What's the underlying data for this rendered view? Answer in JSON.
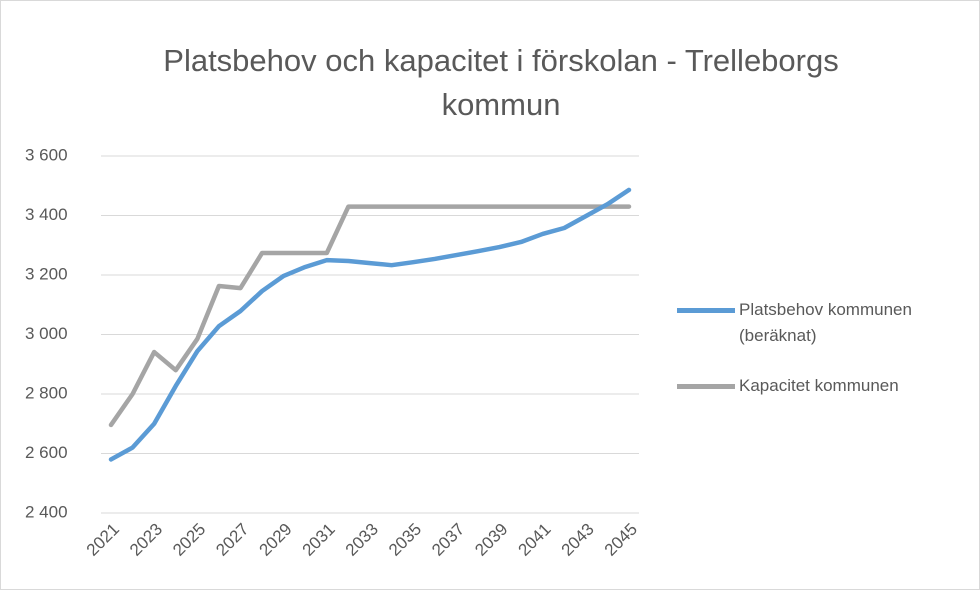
{
  "chart_data": {
    "type": "line",
    "title": "Platsbehov och kapacitet i förskolan - Trelleborgs kommun",
    "categories": [
      "2021",
      null,
      "2023",
      null,
      "2025",
      null,
      "2027",
      null,
      "2029",
      null,
      "2031",
      null,
      "2033",
      null,
      "2035",
      null,
      "2037",
      null,
      "2039",
      null,
      "2041",
      null,
      "2043",
      null,
      "2045"
    ],
    "series": [
      {
        "name": "Platsbehov kommunen (beräknat)",
        "color": "#5b9bd5",
        "values": [
          2580,
          2620,
          2700,
          2827,
          2944,
          3028,
          3079,
          3146,
          3197,
          3227,
          3250,
          3247,
          3240,
          3233,
          3243,
          3254,
          3267,
          3280,
          3294,
          3311,
          3338,
          3358,
          3398,
          3438,
          3486
        ]
      },
      {
        "name": "Kapacitet kommunen",
        "color": "#a5a5a5",
        "values": [
          2696,
          2800,
          2941,
          2880,
          2985,
          3163,
          3156,
          3274,
          3274,
          3274,
          3274,
          3430,
          3430,
          3430,
          3430,
          3430,
          3430,
          3430,
          3430,
          3430,
          3430,
          3430,
          3430,
          3430,
          3430
        ]
      }
    ],
    "ylim": [
      2400,
      3600
    ],
    "yticks": [
      {
        "value": 2400,
        "label": "2 400"
      },
      {
        "value": 2600,
        "label": "2 600"
      },
      {
        "value": 2800,
        "label": "2 800"
      },
      {
        "value": 3000,
        "label": "3 000"
      },
      {
        "value": 3200,
        "label": "3 200"
      },
      {
        "value": 3400,
        "label": "3 400"
      },
      {
        "value": 3600,
        "label": "3 600"
      }
    ],
    "grid": true,
    "legend": "right"
  }
}
